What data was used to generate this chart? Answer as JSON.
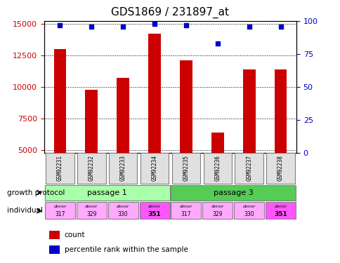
{
  "title": "GDS1869 / 231897_at",
  "samples": [
    "GSM92231",
    "GSM92232",
    "GSM92233",
    "GSM92234",
    "GSM92235",
    "GSM92236",
    "GSM92237",
    "GSM92238"
  ],
  "counts": [
    13000,
    9750,
    10700,
    14200,
    12100,
    6400,
    11400,
    11400
  ],
  "percentiles": [
    97,
    96,
    96,
    98,
    97,
    83,
    96,
    96
  ],
  "ylim_left": [
    4800,
    15200
  ],
  "ylim_right": [
    0,
    100
  ],
  "yticks_left": [
    5000,
    7500,
    10000,
    12500,
    15000
  ],
  "yticks_right": [
    0,
    25,
    50,
    75,
    100
  ],
  "bar_color": "#cc0000",
  "dot_color": "#0000cc",
  "bar_bottom": 4800,
  "passage_colors": [
    "#aaffaa",
    "#55cc55"
  ],
  "passage_labels": [
    "passage 1",
    "passage 3"
  ],
  "donor_ids": [
    "317",
    "329",
    "330",
    "351",
    "317",
    "329",
    "330",
    "351"
  ],
  "donor_colors": [
    "#ffaaff",
    "#ffaaff",
    "#ffaaff",
    "#ff55ff",
    "#ffaaff",
    "#ffaaff",
    "#ffaaff",
    "#ff55ff"
  ],
  "growth_protocol_label": "growth protocol",
  "individual_label": "individual",
  "legend_count_label": "count",
  "legend_percentile_label": "percentile rank within the sample",
  "title_fontsize": 11,
  "axis_label_color_left": "#cc0000",
  "axis_label_color_right": "#0000cc"
}
